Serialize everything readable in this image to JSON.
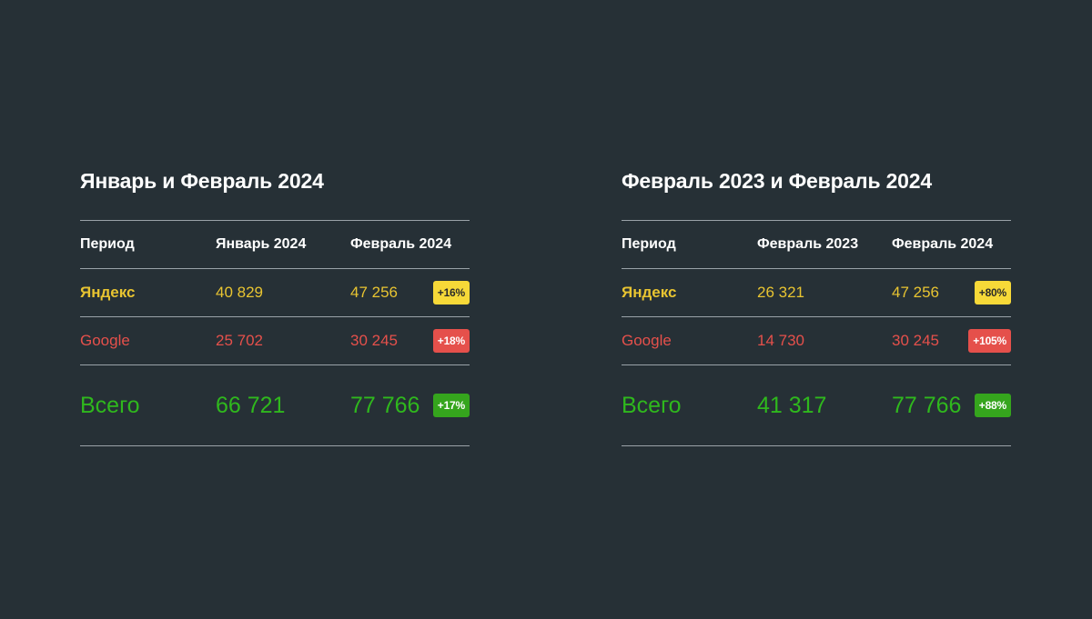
{
  "chart_data": [
    {
      "type": "table",
      "title": "Январь и Февраль 2024",
      "columns": [
        "Период",
        "Январь 2024",
        "Февраль 2024"
      ],
      "rows": [
        {
          "label": "Яндекс",
          "v1": "40 829",
          "v2": "47 256",
          "change": "+16%"
        },
        {
          "label": "Google",
          "v1": "25 702",
          "v2": "30 245",
          "change": "+18%"
        },
        {
          "label": "Всего",
          "v1": "66 721",
          "v2": "77 766",
          "change": "+17%"
        }
      ]
    },
    {
      "type": "table",
      "title": "Февраль 2023 и Февраль 2024",
      "columns": [
        "Период",
        "Февраль 2023",
        "Февраль 2024"
      ],
      "rows": [
        {
          "label": "Яндекс",
          "v1": "26 321",
          "v2": "47 256",
          "change": "+80%"
        },
        {
          "label": "Google",
          "v1": "14 730",
          "v2": "30 245",
          "change": "+105%"
        },
        {
          "label": "Всего",
          "v1": "41 317",
          "v2": "77 766",
          "change": "+88%"
        }
      ]
    }
  ],
  "colors": {
    "background": "#263036",
    "yandex": "#e8c431",
    "yandex_badge": "#f7d938",
    "google": "#e5504b",
    "total": "#2fb81d",
    "total_badge": "#35a51d"
  }
}
